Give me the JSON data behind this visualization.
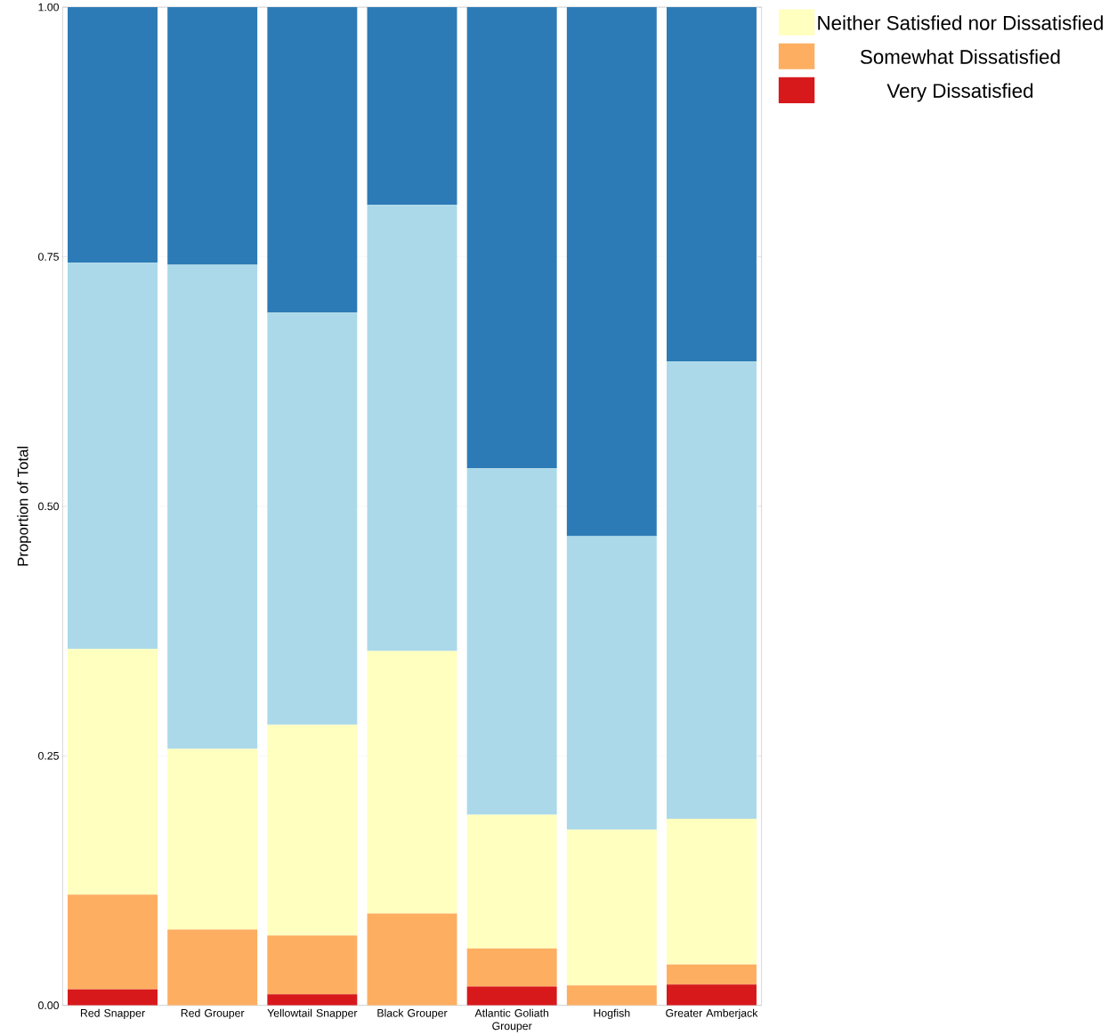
{
  "chart_data": {
    "type": "bar",
    "stacked": true,
    "ylabel": "Proportion of Total",
    "categories": [
      "Red Snapper",
      "Red Grouper",
      "Yellowtail Snapper",
      "Black Grouper",
      "Atlantic Goliath Grouper",
      "Hogfish",
      "Greater Amberjack"
    ],
    "series": [
      {
        "name": "Very Dissatisfied",
        "color": "#d7191c",
        "values": [
          0.016,
          0,
          0.011,
          0,
          0.019,
          0,
          0.021
        ]
      },
      {
        "name": "Somewhat Dissatisfied",
        "color": "#fdae61",
        "values": [
          0.095,
          0.076,
          0.059,
          0.092,
          0.038,
          0.02,
          0.02
        ]
      },
      {
        "name": "Neither Satisfied nor Dissatisfied",
        "color": "#ffffbf",
        "values": [
          0.246,
          0.181,
          0.211,
          0.263,
          0.134,
          0.156,
          0.146
        ]
      },
      {
        "color": "#abd9e9",
        "values": [
          0.387,
          0.485,
          0.413,
          0.447,
          0.347,
          0.294,
          0.458
        ]
      },
      {
        "color": "#2c7bb6",
        "values": [
          0.256,
          0.258,
          0.306,
          0.198,
          0.462,
          0.53,
          0.355
        ]
      }
    ],
    "ylim": [
      0,
      1
    ],
    "yticks": [
      {
        "value": 0,
        "label": "0.00"
      },
      {
        "value": 0.25,
        "label": "0.25"
      },
      {
        "value": 0.5,
        "label": "0.50"
      },
      {
        "value": 0.75,
        "label": "0.75"
      },
      {
        "value": 1,
        "label": "1.00"
      }
    ],
    "grid": "y",
    "legend": "top right"
  }
}
